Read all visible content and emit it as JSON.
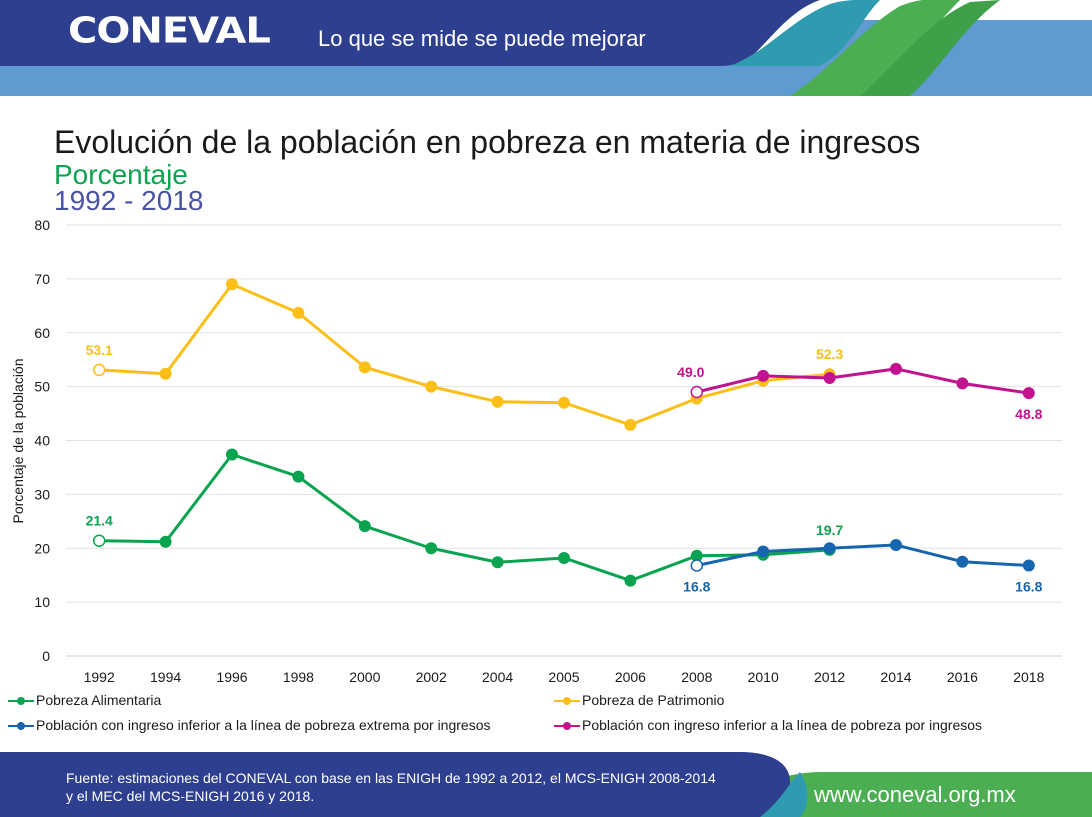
{
  "header": {
    "logo": "CONEVAL",
    "slogan": "Lo que se mide se puede mejorar"
  },
  "title": "Evolución de la población en pobreza en materia de ingresos",
  "subtitle": "Porcentaje",
  "period": "1992 - 2018",
  "colors": {
    "alimentaria": "#0aa34f",
    "patrimonio": "#fbbf18",
    "extrema": "#1566ae",
    "pobreza": "#c2138f",
    "header_blue": "#2e3f8f",
    "header_light": "#4f8fc6",
    "footer_green": "#4cae52"
  },
  "chart_data": {
    "type": "line",
    "ylabel": "Porcentaje de la población",
    "ylim": [
      0,
      80
    ],
    "yticks": [
      "0",
      "10",
      "20",
      "30",
      "40",
      "50",
      "60",
      "70",
      "80"
    ],
    "categories": [
      "1992",
      "1994",
      "1996",
      "1998",
      "2000",
      "2002",
      "2004",
      "2005",
      "2006",
      "2008",
      "2010",
      "2012",
      "2014",
      "2016",
      "2018"
    ],
    "series": [
      {
        "key": "patrimonio",
        "name": "Pobreza de Patrimonio",
        "color": "#fbbf18",
        "values": [
          53.1,
          52.4,
          69.0,
          63.7,
          53.6,
          50.0,
          47.2,
          47.0,
          42.9,
          47.8,
          51.1,
          52.3,
          null,
          null,
          null
        ],
        "labels": [
          {
            "index": 0,
            "text": "53.1",
            "pos": "above"
          },
          {
            "index": 11,
            "text": "52.3",
            "pos": "above"
          }
        ],
        "hollow": [
          0
        ]
      },
      {
        "key": "alimentaria",
        "name": "Pobreza Alimentaria",
        "color": "#0aa34f",
        "values": [
          21.4,
          21.2,
          37.4,
          33.3,
          24.1,
          20.0,
          17.4,
          18.2,
          14.0,
          18.6,
          18.8,
          19.7,
          null,
          null,
          null
        ],
        "labels": [
          {
            "index": 0,
            "text": "21.4",
            "pos": "above"
          },
          {
            "index": 11,
            "text": "19.7",
            "pos": "above"
          }
        ],
        "hollow": [
          0
        ]
      },
      {
        "key": "extrema",
        "name": "Población con ingreso inferior a la línea de pobreza extrema por ingresos",
        "color": "#1566ae",
        "values": [
          null,
          null,
          null,
          null,
          null,
          null,
          null,
          null,
          null,
          16.8,
          19.4,
          20.0,
          20.6,
          17.5,
          16.8
        ],
        "labels": [
          {
            "index": 9,
            "text": "16.8",
            "pos": "below"
          },
          {
            "index": 14,
            "text": "16.8",
            "pos": "below"
          }
        ],
        "hollow": [
          9
        ]
      },
      {
        "key": "pobreza",
        "name": "Población con ingreso inferior a la línea de pobreza por ingresos",
        "color": "#c2138f",
        "values": [
          null,
          null,
          null,
          null,
          null,
          null,
          null,
          null,
          null,
          49.0,
          52.0,
          51.6,
          53.3,
          50.6,
          48.8
        ],
        "labels": [
          {
            "index": 9,
            "text": "49.0",
            "pos": "above-left"
          },
          {
            "index": 14,
            "text": "48.8",
            "pos": "below"
          }
        ],
        "hollow": [
          9
        ]
      }
    ]
  },
  "legend": [
    {
      "name": "Pobreza Alimentaria",
      "color": "#0aa34f"
    },
    {
      "name": "Pobreza de Patrimonio",
      "color": "#fbbf18"
    },
    {
      "name": "Población con ingreso inferior a la línea de pobreza extrema por ingresos",
      "color": "#1566ae"
    },
    {
      "name": "Población con ingreso inferior a la línea de pobreza por ingresos",
      "color": "#c2138f"
    }
  ],
  "footer": {
    "source_line1": "Fuente: estimaciones del CONEVAL con base en las ENIGH de 1992 a 2012, el MCS-ENIGH 2008-2014",
    "source_line2": "y el MEC del MCS-ENIGH 2016 y 2018.",
    "website": "www.coneval.org.mx"
  }
}
